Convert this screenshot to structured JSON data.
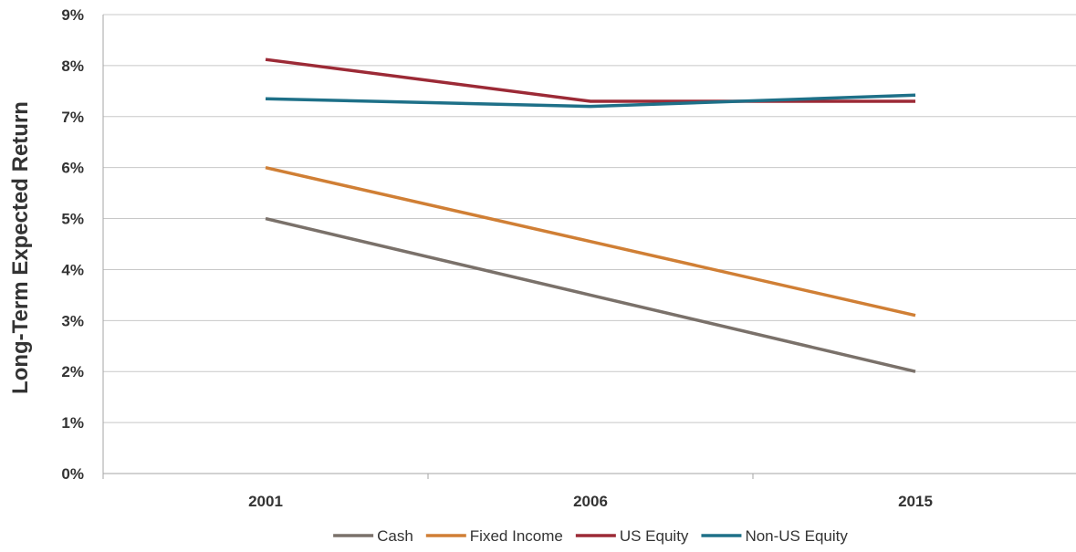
{
  "chart_data": {
    "type": "line",
    "title": "",
    "xlabel": "",
    "ylabel": "Long-Term Expected Return",
    "categories": [
      "2001",
      "2006",
      "2015"
    ],
    "ylim": [
      0,
      9
    ],
    "yticks": [
      "0%",
      "1%",
      "2%",
      "3%",
      "4%",
      "5%",
      "6%",
      "7%",
      "8%",
      "9%"
    ],
    "grid": true,
    "legend_position": "bottom",
    "series": [
      {
        "name": "Cash",
        "color": "#7a716a",
        "values": [
          5.0,
          3.5,
          2.0
        ]
      },
      {
        "name": "Fixed Income",
        "color": "#d07f35",
        "values": [
          6.0,
          4.55,
          3.1
        ]
      },
      {
        "name": "US Equity",
        "color": "#9c2a36",
        "values": [
          8.12,
          7.3,
          7.3
        ]
      },
      {
        "name": "Non-US Equity",
        "color": "#1e7088",
        "values": [
          7.35,
          7.2,
          7.42
        ]
      }
    ]
  }
}
